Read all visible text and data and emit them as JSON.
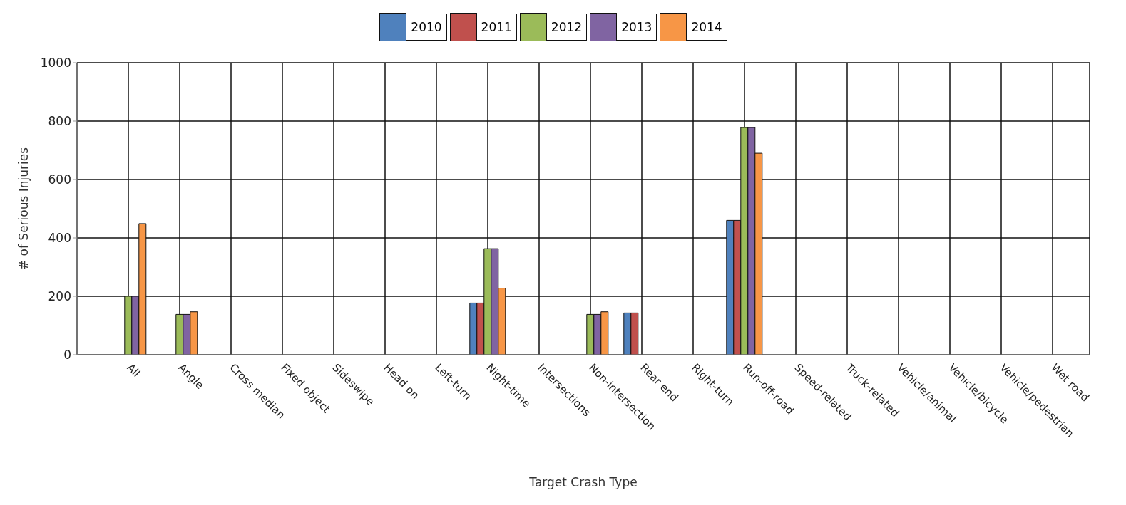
{
  "chart_data": {
    "type": "bar",
    "xlabel": "Target Crash Type",
    "ylabel": "# of Serious Injuries",
    "categories": [
      "All",
      "Angle",
      "Cross median",
      "Fixed object",
      "Sideswipe",
      "Head on",
      "Left-turn",
      "Night-time",
      "Intersections",
      "Non-intersection",
      "Rear end",
      "Right-turn",
      "Run-off-road",
      "Speed-related",
      "Truck-related",
      "Vehicle/animal",
      "Vehicle/bicycle",
      "Vehicle/pedestrian",
      "Wet road"
    ],
    "series": [
      {
        "name": "2010",
        "color": "#4f81bd",
        "values": [
          0,
          0,
          0,
          0,
          0,
          0,
          0,
          177,
          0,
          0,
          143,
          0,
          460,
          0,
          0,
          0,
          0,
          0,
          0
        ]
      },
      {
        "name": "2011",
        "color": "#c0504d",
        "values": [
          0,
          0,
          0,
          0,
          0,
          0,
          0,
          177,
          0,
          0,
          143,
          0,
          460,
          0,
          0,
          0,
          0,
          0,
          0
        ]
      },
      {
        "name": "2012",
        "color": "#9bbb59",
        "values": [
          200,
          138,
          0,
          0,
          0,
          0,
          0,
          363,
          0,
          138,
          0,
          0,
          778,
          0,
          0,
          0,
          0,
          0,
          0
        ]
      },
      {
        "name": "2013",
        "color": "#8064a2",
        "values": [
          200,
          138,
          0,
          0,
          0,
          0,
          0,
          363,
          0,
          138,
          0,
          0,
          778,
          0,
          0,
          0,
          0,
          0,
          0
        ]
      },
      {
        "name": "2014",
        "color": "#f79646",
        "values": [
          449,
          147,
          0,
          0,
          0,
          0,
          0,
          228,
          0,
          147,
          0,
          0,
          690,
          0,
          0,
          0,
          0,
          0,
          0
        ]
      }
    ],
    "ylim": [
      0,
      1000
    ],
    "yticks": [
      0,
      200,
      400,
      600,
      800,
      1000
    ],
    "grid": true,
    "legend": "top"
  }
}
